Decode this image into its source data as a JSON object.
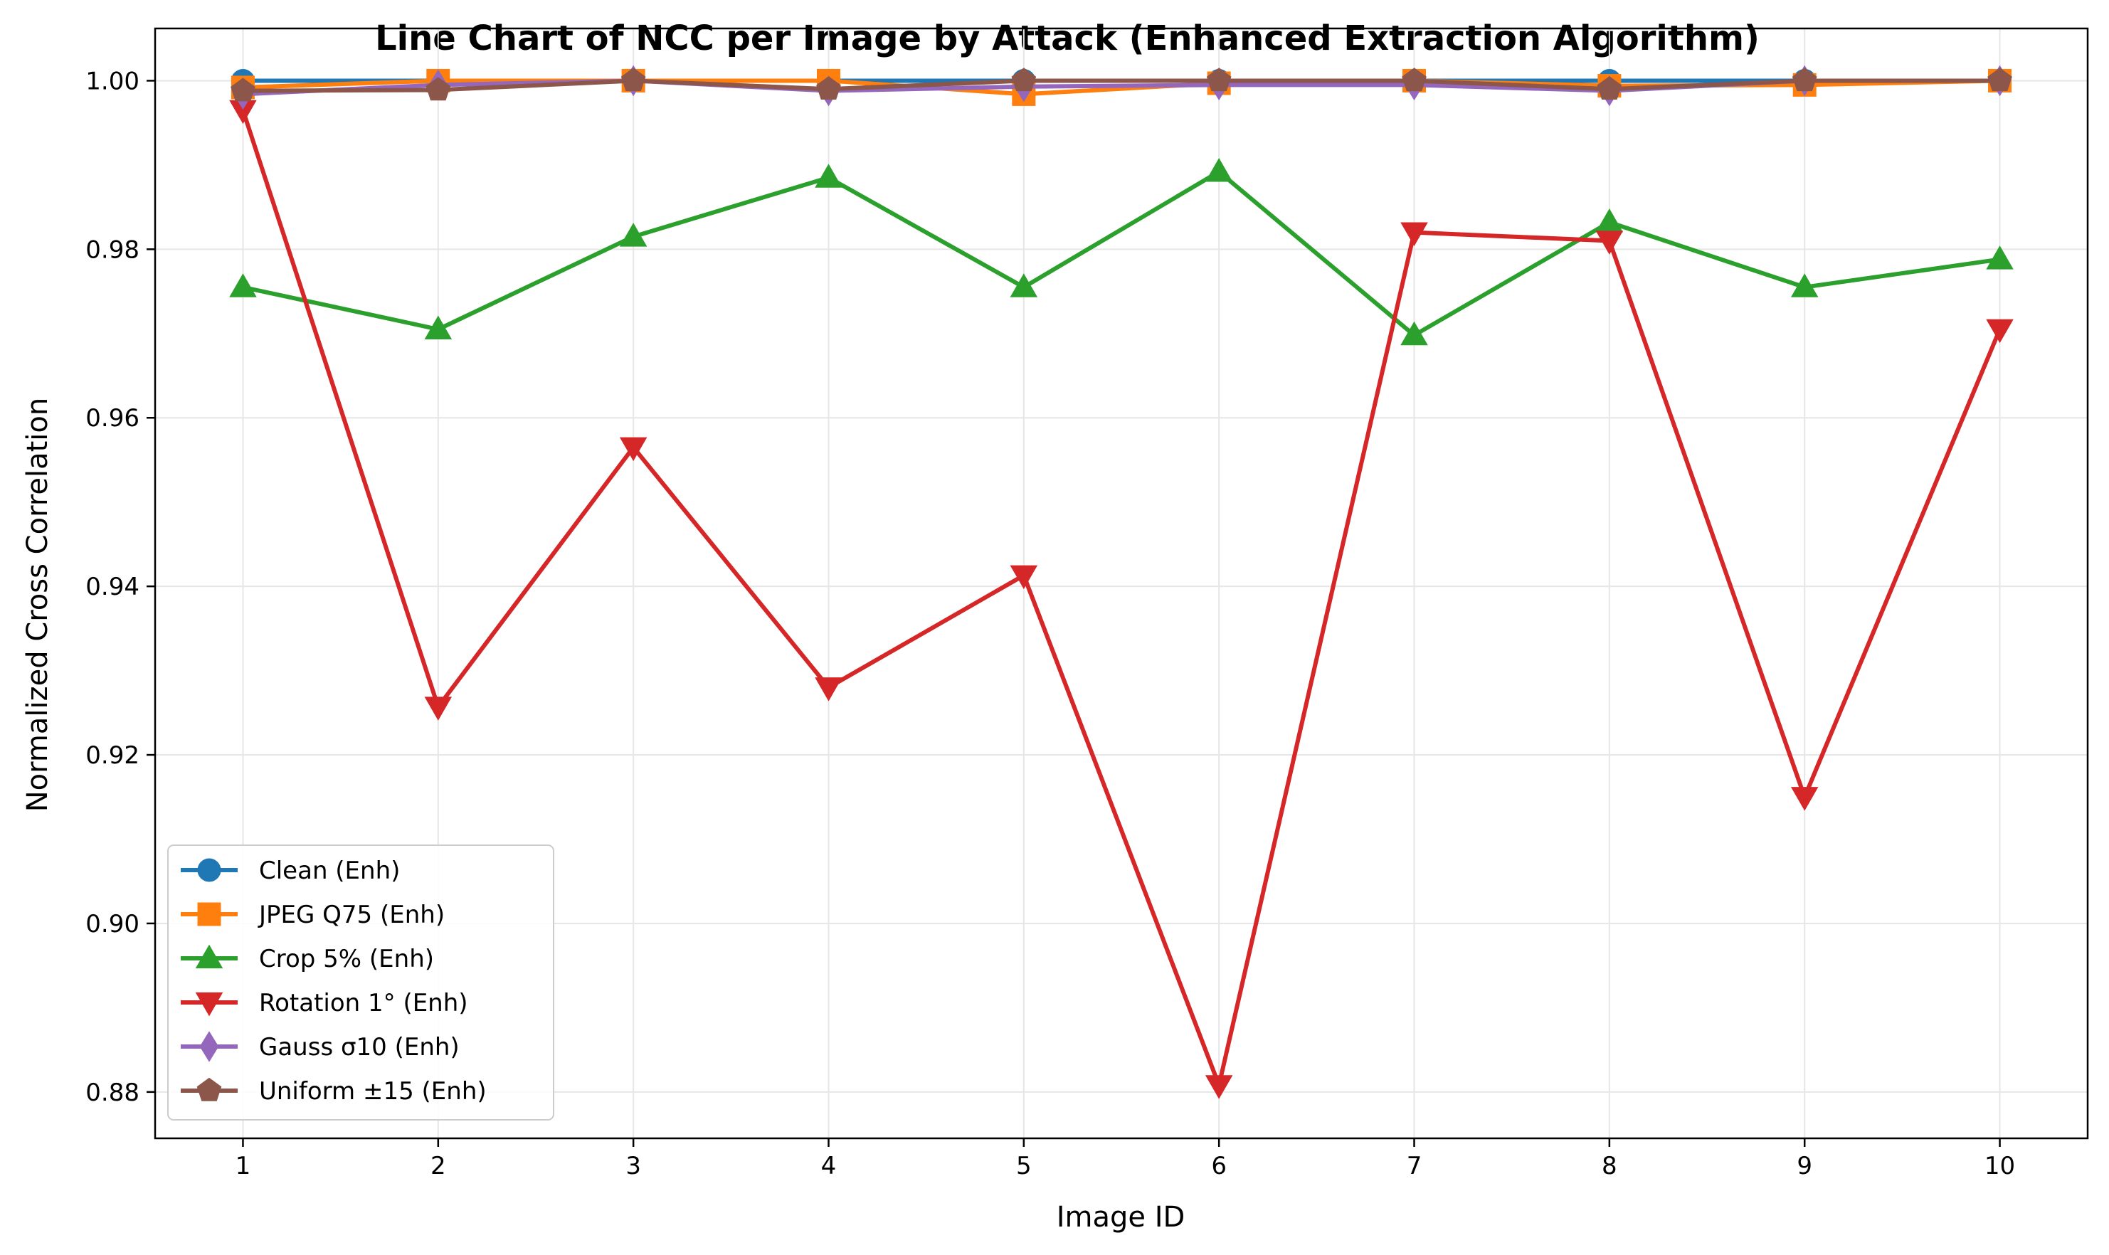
{
  "chart_data": {
    "type": "line",
    "title": "Line Chart of NCC per Image by Attack (Enhanced Extraction Algorithm)",
    "xlabel": "Image ID",
    "ylabel": "Normalized Cross Correlation",
    "x": [
      1,
      2,
      3,
      4,
      5,
      6,
      7,
      8,
      9,
      10
    ],
    "xlim": [
      0.55,
      10.45
    ],
    "ylim": [
      0.8745,
      1.0062
    ],
    "yticks": [
      0.88,
      0.9,
      0.92,
      0.94,
      0.96,
      0.98,
      1.0
    ],
    "ytick_labels": [
      "0.88",
      "0.90",
      "0.92",
      "0.94",
      "0.96",
      "0.98",
      "1.00"
    ],
    "xtick_labels": [
      "1",
      "2",
      "3",
      "4",
      "5",
      "6",
      "7",
      "8",
      "9",
      "10"
    ],
    "grid": true,
    "legend_position": "lower-left",
    "series": [
      {
        "name": "Clean (Enh)",
        "color": "#1f77b4",
        "marker": "circle",
        "values": [
          1.0,
          1.0,
          1.0,
          1.0,
          1.0,
          1.0,
          1.0,
          1.0,
          1.0,
          1.0
        ]
      },
      {
        "name": "JPEG Q75 (Enh)",
        "color": "#ff7f0e",
        "marker": "square",
        "values": [
          0.9992,
          1.0,
          1.0,
          1.0,
          0.9984,
          0.9997,
          1.0,
          0.9994,
          0.9995,
          1.0
        ]
      },
      {
        "name": "Crop 5% (Enh)",
        "color": "#2ca02c",
        "marker": "triangle-up",
        "values": [
          0.9755,
          0.9705,
          0.9815,
          0.9885,
          0.9755,
          0.9892,
          0.9698,
          0.9832,
          0.9755,
          0.9788
        ]
      },
      {
        "name": "Rotation 1° (Enh)",
        "color": "#d62728",
        "marker": "triangle-down",
        "values": [
          0.9965,
          0.9257,
          0.9565,
          0.928,
          0.9413,
          0.8808,
          0.982,
          0.981,
          0.915,
          0.9705
        ]
      },
      {
        "name": "Gauss σ10 (Enh)",
        "color": "#9467bd",
        "marker": "diamond",
        "values": [
          0.9984,
          0.9995,
          1.0,
          0.9988,
          0.9993,
          0.9995,
          0.9995,
          0.9988,
          1.0,
          1.0
        ]
      },
      {
        "name": "Uniform ±15 (Enh)",
        "color": "#8c564b",
        "marker": "pentagon",
        "values": [
          0.9988,
          0.9989,
          1.0,
          0.999,
          1.0,
          1.0,
          1.0,
          0.999,
          1.0,
          1.0
        ]
      }
    ]
  }
}
